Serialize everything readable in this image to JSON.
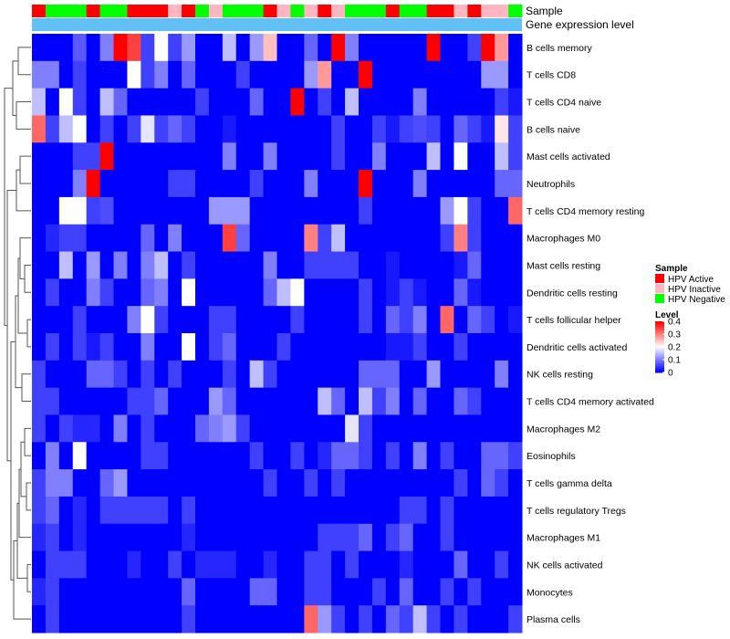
{
  "chart_data": {
    "type": "heatmap",
    "title": "",
    "annotation_rows": [
      {
        "name": "Sample",
        "values": [
          "HPV Active",
          "HPV Negative",
          "HPV Negative",
          "HPV Negative",
          "HPV Active",
          "HPV Negative",
          "HPV Negative",
          "HPV Active",
          "HPV Active",
          "HPV Active",
          "HPV Inactive",
          "HPV Active",
          "HPV Negative",
          "HPV Inactive",
          "HPV Negative",
          "HPV Negative",
          "HPV Negative",
          "HPV Active",
          "HPV Inactive",
          "HPV Negative",
          "HPV Inactive",
          "HPV Active",
          "HPV Inactive",
          "HPV Negative",
          "HPV Negative",
          "HPV Negative",
          "HPV Active",
          "HPV Negative",
          "HPV Negative",
          "HPV Active",
          "HPV Active",
          "HPV Inactive",
          "HPV Active",
          "HPV Inactive",
          "HPV Inactive",
          "HPV Negative"
        ]
      },
      {
        "name": "Gene expression level",
        "values": []
      }
    ],
    "rows": [
      "B cells memory",
      "T cells CD8",
      "T cells CD4 naive",
      "B cells naive",
      "Mast cells activated",
      "Neutrophils",
      "T cells CD4 memory resting",
      "Macrophages M0",
      "Mast cells resting",
      "Dendritic cells resting",
      "T cells follicular helper",
      "Dendritic cells activated",
      "NK cells resting",
      "T cells CD4 memory activated",
      "Macrophages M2",
      "Eosinophils",
      "T cells gamma delta",
      "T cells regulatory  Tregs",
      "Macrophages M1",
      "NK cells activated",
      "Monocytes",
      "Plasma cells"
    ],
    "values": [
      [
        0,
        0,
        0,
        0.07,
        0,
        0.1,
        0.4,
        0.35,
        0.05,
        0.2,
        0.05,
        0.12,
        0,
        0,
        0.15,
        0,
        0.12,
        0.25,
        0,
        0,
        0.08,
        0,
        0.4,
        0.1,
        0,
        0,
        0,
        0,
        0,
        0.4,
        0,
        0,
        0.05,
        0.4,
        0.28,
        0
      ],
      [
        0.1,
        0.1,
        0,
        0.05,
        0,
        0,
        0,
        0.2,
        0.05,
        0.1,
        0,
        0.08,
        0,
        0,
        0,
        0.05,
        0,
        0,
        0,
        0,
        0.12,
        0.28,
        0,
        0,
        0.4,
        0,
        0,
        0,
        0,
        0,
        0,
        0,
        0,
        0.12,
        0.12,
        0
      ],
      [
        0.15,
        0,
        0.2,
        0.05,
        0,
        0.15,
        0.08,
        0,
        0,
        0,
        0,
        0,
        0.05,
        0,
        0,
        0,
        0.08,
        0,
        0,
        0.4,
        0,
        0.05,
        0,
        0.15,
        0,
        0,
        0,
        0,
        0.1,
        0,
        0,
        0,
        0,
        0,
        0.05,
        0.02
      ],
      [
        0.32,
        0.05,
        0.15,
        0.2,
        0,
        0.05,
        0,
        0.05,
        0.18,
        0.05,
        0.08,
        0.05,
        0,
        0,
        0.02,
        0,
        0,
        0,
        0,
        0,
        0,
        0,
        0.05,
        0,
        0,
        0.05,
        0.02,
        0.05,
        0.06,
        0.05,
        0,
        0.08,
        0.05,
        0.02,
        0.22,
        0.05
      ],
      [
        0,
        0,
        0,
        0.05,
        0.05,
        0.4,
        0,
        0,
        0,
        0,
        0,
        0,
        0,
        0,
        0.1,
        0,
        0,
        0.1,
        0,
        0,
        0,
        0,
        0.05,
        0,
        0,
        0.1,
        0,
        0,
        0,
        0.15,
        0,
        0.2,
        0,
        0,
        0.15,
        0.05
      ],
      [
        0,
        0,
        0,
        0.1,
        0.4,
        0,
        0,
        0,
        0,
        0,
        0.05,
        0.05,
        0,
        0,
        0,
        0,
        0.05,
        0,
        0,
        0,
        0.1,
        0,
        0,
        0,
        0.4,
        0,
        0,
        0,
        0.1,
        0,
        0,
        0,
        0,
        0,
        0.08,
        0.08
      ],
      [
        0,
        0,
        0.2,
        0.2,
        0.05,
        0.06,
        0,
        0,
        0,
        0,
        0,
        0,
        0,
        0.12,
        0.12,
        0.12,
        0,
        0,
        0,
        0,
        0,
        0,
        0,
        0,
        0.05,
        0,
        0,
        0,
        0,
        0,
        0.12,
        0.2,
        0.05,
        0,
        0,
        0.32
      ],
      [
        0,
        0.03,
        0.05,
        0.05,
        0,
        0,
        0,
        0,
        0.08,
        0,
        0.1,
        0,
        0,
        0,
        0.35,
        0.08,
        0,
        0,
        0,
        0,
        0.3,
        0.05,
        0.15,
        0,
        0,
        0,
        0,
        0,
        0,
        0,
        0.05,
        0.3,
        0.05,
        0,
        0,
        0
      ],
      [
        0,
        0,
        0.15,
        0,
        0.12,
        0,
        0.1,
        0,
        0.1,
        0.15,
        0,
        0.05,
        0,
        0,
        0,
        0,
        0,
        0.1,
        0,
        0,
        0.05,
        0.05,
        0.05,
        0.05,
        0,
        0,
        0.02,
        0,
        0,
        0,
        0,
        0.02,
        0.08,
        0,
        0,
        0
      ],
      [
        0,
        0.05,
        0,
        0,
        0.1,
        0.05,
        0,
        0,
        0.08,
        0.1,
        0,
        0.2,
        0,
        0,
        0,
        0,
        0,
        0.08,
        0.15,
        0.2,
        0,
        0,
        0,
        0,
        0.05,
        0,
        0.02,
        0.05,
        0.02,
        0,
        0,
        0.08,
        0.02,
        0,
        0,
        0
      ],
      [
        0,
        0,
        0,
        0.05,
        0,
        0,
        0,
        0.1,
        0.2,
        0.05,
        0,
        0,
        0,
        0.05,
        0.05,
        0,
        0,
        0,
        0,
        0.05,
        0,
        0,
        0,
        0,
        0.05,
        0,
        0.08,
        0.05,
        0.1,
        0,
        0.32,
        0,
        0.08,
        0.05,
        0,
        0.02
      ],
      [
        0,
        0.05,
        0,
        0.05,
        0.02,
        0.05,
        0,
        0,
        0.1,
        0,
        0,
        0.2,
        0,
        0.05,
        0.08,
        0,
        0,
        0,
        0.05,
        0,
        0,
        0,
        0,
        0,
        0,
        0,
        0.02,
        0.02,
        0.05,
        0,
        0,
        0.05,
        0,
        0,
        0,
        0
      ],
      [
        0.05,
        0,
        0,
        0,
        0.08,
        0.08,
        0.05,
        0,
        0.05,
        0,
        0.05,
        0,
        0,
        0,
        0.05,
        0,
        0.15,
        0.05,
        0,
        0,
        0,
        0,
        0,
        0,
        0.08,
        0.08,
        0.08,
        0,
        0,
        0.12,
        0,
        0,
        0,
        0,
        0.1,
        0
      ],
      [
        0.05,
        0.05,
        0,
        0,
        0,
        0,
        0,
        0.05,
        0.05,
        0.08,
        0,
        0,
        0,
        0.12,
        0.08,
        0,
        0,
        0,
        0,
        0,
        0,
        0.15,
        0.08,
        0,
        0.15,
        0.05,
        0.1,
        0,
        0.08,
        0,
        0,
        0.08,
        0.05,
        0,
        0,
        0
      ],
      [
        0.05,
        0,
        0.05,
        0.03,
        0.03,
        0,
        0.1,
        0,
        0.05,
        0,
        0,
        0,
        0.08,
        0.1,
        0.12,
        0.05,
        0,
        0,
        0,
        0,
        0,
        0,
        0,
        0.18,
        0.05,
        0,
        0,
        0,
        0,
        0,
        0,
        0,
        0,
        0,
        0,
        0
      ],
      [
        0,
        0.1,
        0,
        0.2,
        0,
        0,
        0,
        0,
        0.05,
        0.05,
        0,
        0,
        0,
        0,
        0,
        0,
        0.05,
        0,
        0,
        0.05,
        0,
        0.03,
        0.08,
        0.08,
        0.05,
        0,
        0.05,
        0,
        0.1,
        0,
        0.05,
        0,
        0,
        0.08,
        0.08,
        0.05
      ],
      [
        0.05,
        0.1,
        0.1,
        0,
        0,
        0.08,
        0.12,
        0,
        0,
        0,
        0,
        0,
        0,
        0,
        0,
        0,
        0,
        0.05,
        0,
        0,
        0.05,
        0,
        0.05,
        0,
        0,
        0,
        0,
        0,
        0,
        0,
        0,
        0.05,
        0,
        0.08,
        0.05,
        0
      ],
      [
        0.05,
        0.08,
        0,
        0.03,
        0,
        0.05,
        0.05,
        0.05,
        0.05,
        0.05,
        0,
        0.05,
        0,
        0,
        0,
        0,
        0,
        0,
        0,
        0,
        0,
        0,
        0,
        0,
        0,
        0,
        0,
        0.05,
        0.05,
        0,
        0.05,
        0,
        0,
        0,
        0,
        0
      ],
      [
        0.03,
        0.05,
        0,
        0.03,
        0,
        0,
        0,
        0,
        0,
        0,
        0,
        0.03,
        0,
        0,
        0,
        0,
        0,
        0,
        0,
        0,
        0,
        0.05,
        0.05,
        0.05,
        0.08,
        0,
        0.05,
        0.08,
        0,
        0,
        0.05,
        0,
        0,
        0,
        0,
        0
      ],
      [
        0,
        0.05,
        0.05,
        0.05,
        0,
        0,
        0,
        0.03,
        0,
        0,
        0.05,
        0,
        0.03,
        0.03,
        0.03,
        0,
        0,
        0.03,
        0,
        0,
        0.05,
        0.05,
        0,
        0.05,
        0,
        0,
        0,
        0.03,
        0,
        0,
        0,
        0.08,
        0,
        0,
        0.05,
        0
      ],
      [
        0.03,
        0.05,
        0,
        0,
        0,
        0,
        0,
        0,
        0,
        0,
        0,
        0.08,
        0,
        0,
        0,
        0,
        0.08,
        0.08,
        0,
        0,
        0.05,
        0.05,
        0,
        0,
        0,
        0.05,
        0,
        0.08,
        0,
        0,
        0.05,
        0,
        0.05,
        0,
        0,
        0
      ],
      [
        0,
        0.05,
        0,
        0,
        0,
        0,
        0,
        0,
        0,
        0,
        0,
        0.05,
        0,
        0,
        0,
        0,
        0,
        0,
        0,
        0,
        0.32,
        0.12,
        0.05,
        0,
        0.05,
        0,
        0.08,
        0.05,
        0.15,
        0.05,
        0,
        0.05,
        0,
        0,
        0,
        0.05
      ]
    ],
    "color_scale": {
      "title": "Level",
      "ticks": [
        0,
        0.1,
        0.2,
        0.3,
        0.4
      ],
      "range": [
        0,
        0.4
      ],
      "colors": [
        "#0000ff",
        "#ffffff",
        "#ff0000"
      ]
    },
    "legend": {
      "title": "Sample",
      "placement": "right",
      "entries": [
        {
          "label": "HPV Active",
          "color": "#ff0000"
        },
        {
          "label": "HPV Inactive",
          "color": "#ffb6c1"
        },
        {
          "label": "HPV Negative",
          "color": "#00ff00"
        }
      ]
    },
    "annotation_colors": {
      "gene_expression_level": "#62c0f5"
    },
    "dendrogram": "row"
  }
}
